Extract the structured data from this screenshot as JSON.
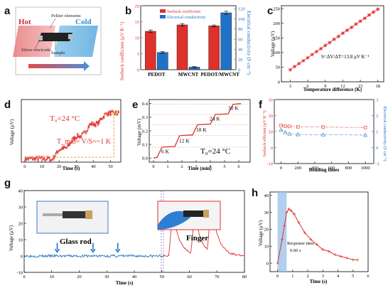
{
  "colors": {
    "red": "#e0302c",
    "blue": "#1e73c8",
    "gray": "#c8c8c8",
    "ltblue": "#9dc3ea"
  },
  "panel_labels": {
    "a": "a",
    "b": "b",
    "c": "c",
    "d": "d",
    "e": "e",
    "f": "f",
    "g": "g",
    "h": "h"
  },
  "chart_data": [
    {
      "panel": "a",
      "type": "diagram",
      "labels": {
        "hot": "Hot",
        "cold": "Cold",
        "peltier": "Peltier elements",
        "silver": "Silver electrode",
        "sample": "Sample"
      }
    },
    {
      "panel": "b",
      "type": "bar",
      "categories": [
        "PEDOT",
        "MWCNT",
        "PEDOT/MWCNT"
      ],
      "series": [
        {
          "name": "Seebeck coefficient",
          "values": [
            12,
            14,
            13.7
          ],
          "errors": [
            0.4,
            0.4,
            0.3
          ],
          "axis": "left"
        },
        {
          "name": "Electrical conductivity",
          "values": [
            34,
            5,
            112
          ],
          "errors": [
            2,
            1,
            3
          ],
          "axis": "right"
        }
      ],
      "ylabel": "Seebeck coefficient (μV K⁻¹)",
      "y2label": "Electrical conductivity (S cm⁻¹)",
      "ylim": [
        0,
        20
      ],
      "y2lim": [
        0,
        126
      ],
      "yticks": [
        0,
        5,
        10,
        15,
        20
      ],
      "y2ticks": [
        0,
        20,
        40,
        60,
        80,
        100,
        120
      ]
    },
    {
      "panel": "c",
      "type": "line",
      "x": [
        3,
        3.75,
        4.5,
        5.25,
        6,
        6.75,
        7.5,
        8.25,
        9,
        9.75,
        10.5,
        11.25,
        12,
        12.75,
        13.5,
        14.25,
        15,
        15.75,
        16.5,
        17.25,
        18
      ],
      "y": [
        41,
        52,
        62,
        72,
        82,
        93,
        103,
        113,
        124,
        134,
        145,
        155,
        166,
        176,
        186,
        197,
        207,
        217,
        228,
        238,
        248
      ],
      "xlabel": "Temperature difference (K)",
      "ylabel": "Voltage (μV)",
      "annotation": "S=ΔV/ΔT=13.8 μV K⁻¹",
      "xlim": [
        1.5,
        19
      ],
      "ylim": [
        0,
        260
      ],
      "xticks": [
        3,
        6,
        9,
        12,
        15,
        18
      ],
      "yticks": [
        0,
        50,
        100,
        150,
        200,
        250
      ]
    },
    {
      "panel": "d",
      "type": "scatter",
      "x_start": 0,
      "x_end": 55,
      "xlabel": "Time (s)",
      "ylabel": "Voltage (μV)",
      "annot_t": "T₀=24 °C",
      "annot_min": "T_min= V/S=~1 K",
      "xlim": [
        -2,
        56
      ],
      "ylim": [
        -1,
        18
      ],
      "xticks": [
        0,
        10,
        20,
        30,
        40,
        50
      ]
    },
    {
      "panel": "e",
      "type": "line",
      "steps": [
        {
          "t": 0.0,
          "v": 0.0
        },
        {
          "t": 0.6,
          "v": 0.08
        },
        {
          "t": 1.85,
          "v": 0.165
        },
        {
          "t": 3.1,
          "v": 0.245
        },
        {
          "t": 4.35,
          "v": 0.32
        },
        {
          "t": 5.6,
          "v": 0.395
        }
      ],
      "step_labels": [
        "6 K",
        "12 K",
        "18 K",
        "24 K",
        "30 K"
      ],
      "hlines": [
        0.08,
        0.165,
        0.245,
        0.32,
        0.395
      ],
      "xlabel": "Time (min)",
      "ylabel": "Voltage (mV)",
      "annot_t": "T₀=24 °C",
      "xlim": [
        -0.3,
        6.8
      ],
      "ylim": [
        -0.03,
        0.43
      ],
      "xticks": [
        0,
        1,
        2,
        3,
        4,
        5,
        6
      ],
      "yticks": [
        0.0,
        0.1,
        0.2,
        0.3,
        0.4
      ]
    },
    {
      "panel": "f",
      "type": "line",
      "x": [
        0,
        50,
        100,
        200,
        500,
        1000
      ],
      "series": [
        {
          "name": "Seebeck",
          "values": [
            13.8,
            13.4,
            13.2,
            13.0,
            12.8,
            12.5
          ],
          "axis": "left"
        },
        {
          "name": "Conductivity",
          "values": [
            1.1,
            0.95,
            0.85,
            0.82,
            0.8,
            0.78
          ],
          "axis": "right"
        }
      ],
      "xlabel": "Bending times",
      "ylabel": "Seebeck efficient (μV K⁻¹)",
      "y2label": "Electrical conductivity (S cm⁻¹)",
      "xlim": [
        -80,
        1100
      ],
      "ylim": [
        -10,
        30
      ],
      "y2lim": [
        -1,
        3
      ],
      "xticks": [
        0,
        200,
        400,
        600,
        800,
        1000
      ],
      "yticks": [
        -10,
        0,
        10,
        20,
        30
      ],
      "y2ticks": [
        -1,
        0,
        1,
        2,
        3
      ]
    },
    {
      "panel": "g",
      "type": "line",
      "xlabel": "Time (s)",
      "ylabel": "Voltage (μV)",
      "glass_label": "Glass rod",
      "finger_label": "Finger",
      "glass_touches": [
        12,
        25,
        34
      ],
      "finger_peaks": [
        {
          "t": 54,
          "v": 28
        },
        {
          "t": 62,
          "v": 25
        },
        {
          "t": 68,
          "v": 30
        }
      ],
      "xlim": [
        0,
        80
      ],
      "ylim": [
        -10,
        40
      ],
      "xticks": [
        0,
        10,
        20,
        30,
        40,
        50,
        60,
        70,
        80
      ],
      "yticks": [
        -10,
        0,
        10,
        20,
        30,
        40
      ]
    },
    {
      "panel": "h",
      "type": "line",
      "x": [
        0,
        0.3,
        0.45,
        0.6,
        0.75,
        0.9,
        1.1,
        1.4,
        1.8,
        2.2,
        2.6,
        3.0,
        3.4,
        3.8,
        4.2,
        4.6,
        5.0,
        5.3
      ],
      "y": [
        0,
        14,
        22,
        30,
        32,
        31,
        29,
        24,
        18,
        14,
        11,
        8,
        7,
        5,
        4,
        3,
        2,
        2
      ],
      "xlabel": "Time (s)",
      "ylabel": "Voltage (μV)",
      "annot_rt": "Response time",
      "annot_rv": "0.60 s",
      "xlim": [
        -0.5,
        6
      ],
      "ylim": [
        -5,
        42
      ],
      "xticks": [
        0,
        1,
        2,
        3,
        4,
        5,
        6
      ],
      "yticks": [
        0,
        10,
        20,
        30,
        40
      ]
    }
  ]
}
